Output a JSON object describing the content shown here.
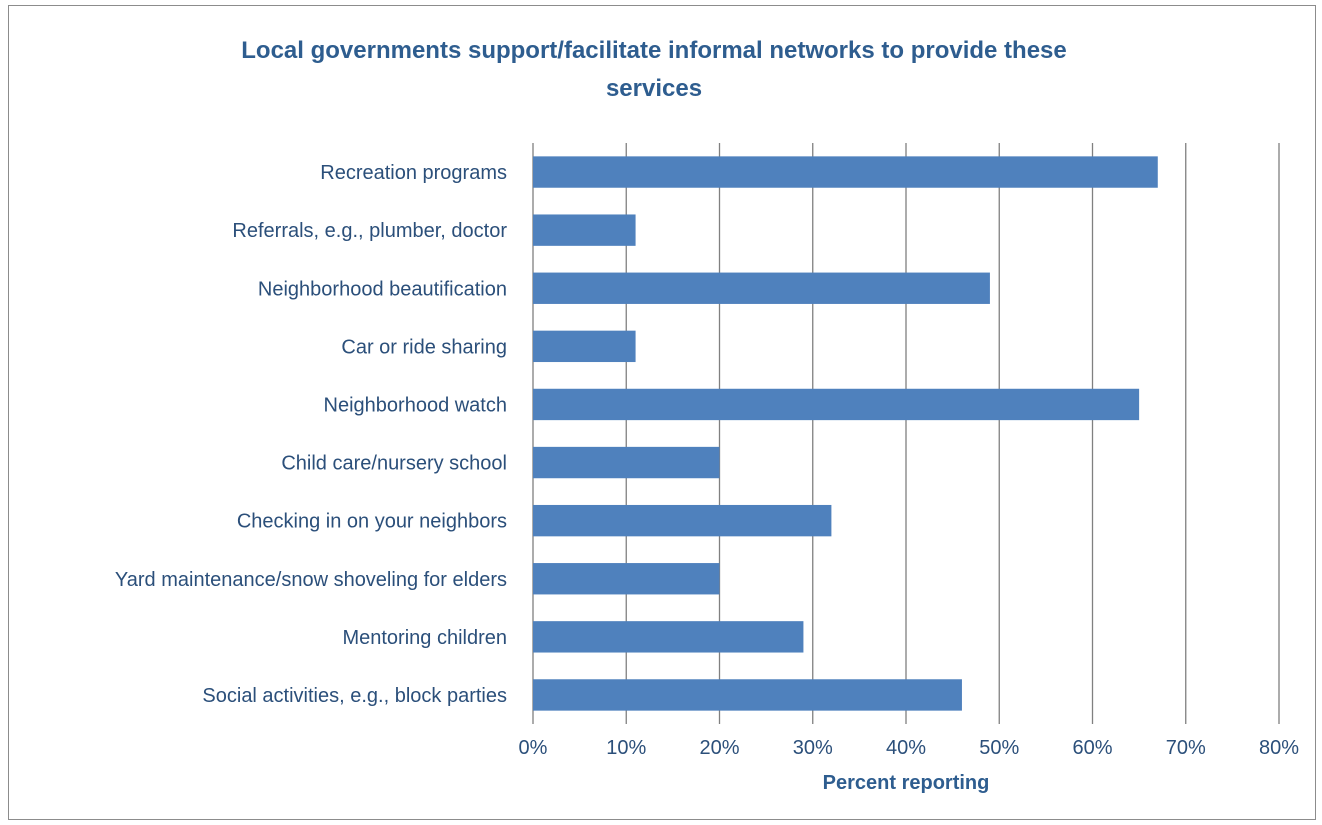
{
  "chart_data": {
    "type": "bar",
    "orientation": "horizontal",
    "title": "Local governments support/facilitate informal networks to provide these services",
    "xlabel": "Percent reporting",
    "ylabel": "",
    "xlim": [
      0,
      80
    ],
    "x_ticks": [
      "0%",
      "10%",
      "20%",
      "30%",
      "40%",
      "50%",
      "60%",
      "70%",
      "80%"
    ],
    "grid": "vertical",
    "legend": "none",
    "bar_color": "#4f81bd",
    "text_color": "#2e5d8f",
    "categories": [
      "Recreation programs",
      "Referrals, e.g., plumber, doctor",
      "Neighborhood beautification",
      "Car or ride sharing",
      "Neighborhood watch",
      "Child care/nursery school",
      "Checking in on your neighbors",
      "Yard maintenance/snow shoveling for elders",
      "Mentoring children",
      "Social activities, e.g., block parties"
    ],
    "values": [
      67,
      11,
      49,
      11,
      65,
      20,
      32,
      20,
      29,
      46
    ]
  }
}
